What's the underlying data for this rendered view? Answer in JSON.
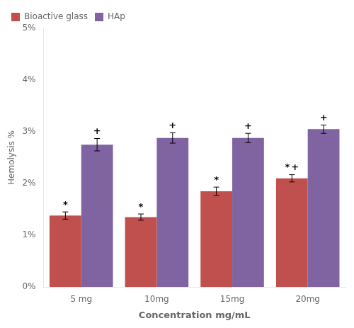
{
  "chart_data": {
    "type": "bar",
    "categories": [
      "5 mg",
      "10mg",
      "15mg",
      "20mg"
    ],
    "series": [
      {
        "name": "Bioactive glass",
        "color": "#C0504D",
        "values": [
          1.38,
          1.35,
          1.85,
          2.1
        ],
        "errors": [
          0.07,
          0.06,
          0.08,
          0.07
        ]
      },
      {
        "name": "HAp",
        "color": "#8064A2",
        "values": [
          2.75,
          2.88,
          2.88,
          3.05
        ],
        "errors": [
          0.12,
          0.1,
          0.09,
          0.08
        ]
      }
    ],
    "xlabel": "Concentration mg/mL",
    "ylabel": "Hemolysis %",
    "ylim": [
      0,
      5
    ],
    "yticks": [
      {
        "value": 0,
        "label": "0%"
      },
      {
        "value": 1,
        "label": "1%"
      },
      {
        "value": 2,
        "label": "2%"
      },
      {
        "value": 3,
        "label": "3%"
      },
      {
        "value": 4,
        "label": "4%"
      },
      {
        "value": 5,
        "label": "5%"
      }
    ],
    "grid": false,
    "legend": "upper left",
    "annotations": [
      {
        "text": "*",
        "category": "5 mg",
        "series": "Bioactive glass"
      },
      {
        "text": "+",
        "category": "5 mg",
        "series": "HAp"
      },
      {
        "text": "*",
        "category": "10mg",
        "series": "Bioactive glass"
      },
      {
        "text": "+",
        "category": "10mg",
        "series": "HAp"
      },
      {
        "text": "*",
        "category": "15mg",
        "series": "Bioactive glass"
      },
      {
        "text": "+",
        "category": "15mg",
        "series": "HAp"
      },
      {
        "text": "*",
        "category": "20mg",
        "series": "Bioactive glass"
      },
      {
        "text": "+",
        "category": "20mg",
        "series": "HAp"
      },
      {
        "text": "+",
        "category": "20mg",
        "series": "Bioactive glass"
      }
    ]
  }
}
